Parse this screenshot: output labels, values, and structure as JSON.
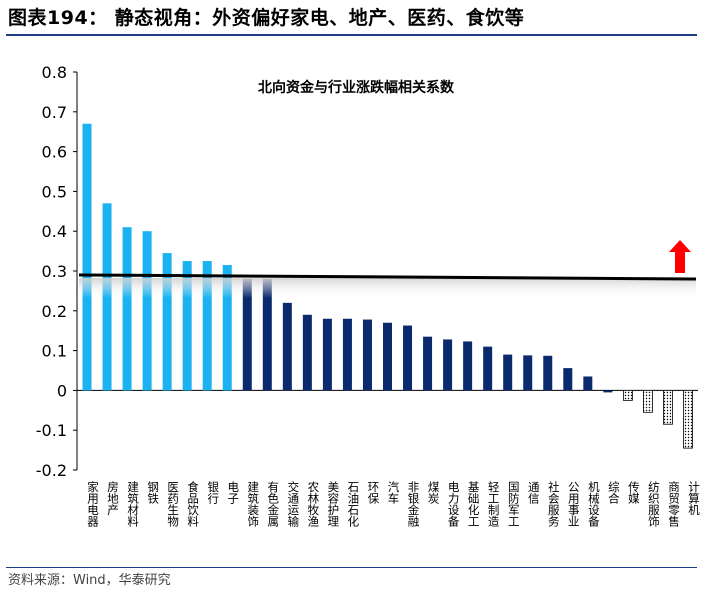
{
  "header": {
    "title": "图表194： 静态视角：外资偏好家电、地产、医药、食饮等"
  },
  "footer": {
    "source": "资料来源：Wind，华泰研究"
  },
  "colors": {
    "light_bar": "#1ab2f0",
    "dark_bar": "#0b2a6e",
    "rule": "#1f3c88",
    "arrow": "#ff0000",
    "threshold_line": "#000000"
  },
  "chart_data": {
    "type": "bar",
    "title": "北向资金与行业涨跌幅相关系数",
    "xlabel": "",
    "ylabel": "",
    "ylim": [
      -0.2,
      0.8
    ],
    "yticks": [
      "0.8",
      "0.7",
      "0.6",
      "0.5",
      "0.4",
      "0.3",
      "0.2",
      "0.1",
      "0",
      "-0.1",
      "-0.2"
    ],
    "grid": false,
    "threshold": 0.285,
    "threshold_arrow": "up",
    "categories": [
      "家用电器",
      "房地产",
      "建筑材料",
      "钢铁",
      "医药生物",
      "食品饮料",
      "银行",
      "电子",
      "建筑装饰",
      "有色金属",
      "交通运输",
      "农林牧渔",
      "美容护理",
      "石油石化",
      "环保",
      "汽车",
      "非银金融",
      "煤炭",
      "电力设备",
      "基础化工",
      "轻工制造",
      "国防军工",
      "通信",
      "社会服务",
      "公用事业",
      "机械设备",
      "综合",
      "传媒",
      "纺织服饰",
      "商贸零售",
      "计算机"
    ],
    "values": [
      0.67,
      0.47,
      0.41,
      0.4,
      0.345,
      0.325,
      0.325,
      0.315,
      0.28,
      0.28,
      0.22,
      0.19,
      0.18,
      0.18,
      0.178,
      0.17,
      0.163,
      0.135,
      0.128,
      0.123,
      0.11,
      0.09,
      0.088,
      0.087,
      0.056,
      0.035,
      -0.005,
      -0.025,
      -0.055,
      -0.085,
      -0.145
    ],
    "styles": [
      "light",
      "light",
      "light",
      "light",
      "light",
      "light",
      "light",
      "light",
      "dark",
      "dark",
      "dark",
      "dark",
      "dark",
      "dark",
      "dark",
      "dark",
      "dark",
      "dark",
      "dark",
      "dark",
      "dark",
      "dark",
      "dark",
      "dark",
      "dark",
      "dark",
      "dark",
      "dotted",
      "dotted",
      "dotted",
      "dotted"
    ]
  }
}
